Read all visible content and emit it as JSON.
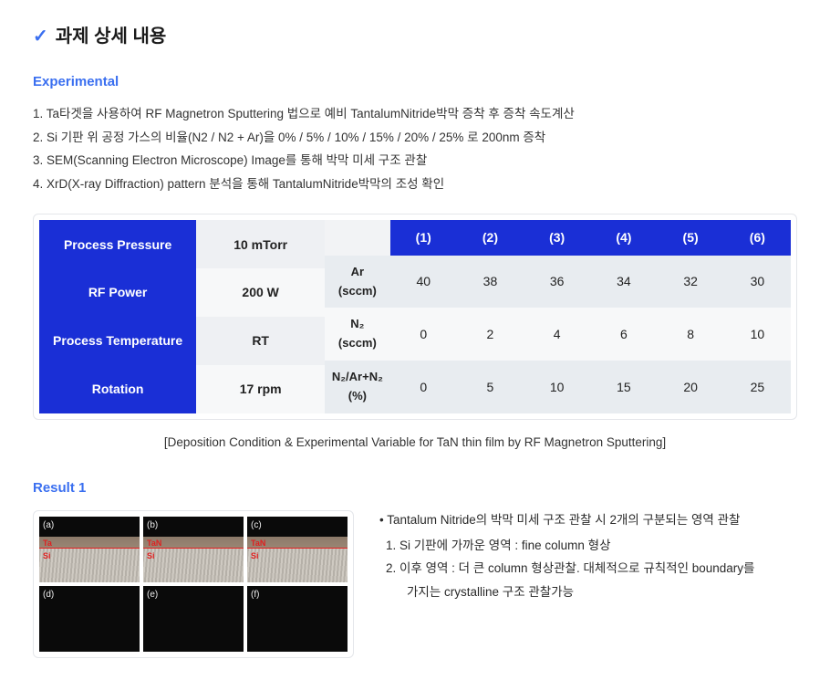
{
  "header": {
    "check_glyph": "✓",
    "title": "과제 상세 내용"
  },
  "experimental": {
    "heading": "Experimental",
    "items": [
      "1. Ta타겟을 사용하여 RF Magnetron Sputtering 법으로 예비 TantalumNitride박막 증착 후 증착 속도계산",
      "2. Si 기판 위 공정 가스의 비율(N2 / N2 + Ar)을 0% / 5% / 10% / 15% / 20% / 25% 로 200nm 증착",
      "3. SEM(Scanning Electron Microscope) Image를 통해 박막 미세 구조 관찰",
      "4. XrD(X-ray Diffraction) pattern 분석을 통해 TantalumNitride박막의 조성 확인"
    ]
  },
  "condition_table": {
    "left": {
      "rows": [
        {
          "label": "Process Pressure",
          "value": "10 mTorr"
        },
        {
          "label": "RF Power",
          "value": "200 W"
        },
        {
          "label": "Process Temperature",
          "value": "RT"
        },
        {
          "label": "Rotation",
          "value": "17 rpm"
        }
      ]
    },
    "right": {
      "col_headers": [
        "(1)",
        "(2)",
        "(3)",
        "(4)",
        "(5)",
        "(6)"
      ],
      "rows": [
        {
          "label": "Ar (sccm)",
          "cells": [
            "40",
            "38",
            "36",
            "34",
            "32",
            "30"
          ]
        },
        {
          "label": "N₂ (sccm)",
          "cells": [
            "0",
            "2",
            "4",
            "6",
            "8",
            "10"
          ]
        },
        {
          "label": "N₂/Ar+N₂ (%)",
          "cells": [
            "0",
            "5",
            "10",
            "15",
            "20",
            "25"
          ]
        }
      ]
    },
    "caption": "[Deposition Condition & Experimental Variable for TaN thin film by RF Magnetron Sputtering]",
    "colors": {
      "header_bg": "#1a2fd6",
      "header_fg": "#ffffff",
      "cell_bg_a": "#e8ecf0",
      "cell_bg_b": "#f7f8f9"
    }
  },
  "result1": {
    "heading": "Result 1",
    "sem_panels": [
      {
        "letter": "(a)",
        "top_label": "Ta",
        "bot_label": "Si",
        "bottom_row": false
      },
      {
        "letter": "(b)",
        "top_label": "TaN",
        "bot_label": "Si",
        "bottom_row": false
      },
      {
        "letter": "(c)",
        "top_label": "TaN",
        "bot_label": "Si",
        "bottom_row": false
      },
      {
        "letter": "(d)",
        "top_label": "",
        "bot_label": "",
        "bottom_row": true
      },
      {
        "letter": "(e)",
        "top_label": "",
        "bot_label": "",
        "bottom_row": true
      },
      {
        "letter": "(f)",
        "top_label": "",
        "bot_label": "",
        "bottom_row": true
      }
    ],
    "bullet": "• Tantalum Nitride의 박막 미세 구조 관찰 시 2개의 구분되는 영역 관찰",
    "points": [
      "Si 기판에 가까운 영역 : fine column 형상",
      "이후 영역 : 더 큰 column 형상관찰. 대체적으로 규칙적인 boundary를"
    ],
    "cont": "가지는 crystalline 구조 관찰가능"
  }
}
